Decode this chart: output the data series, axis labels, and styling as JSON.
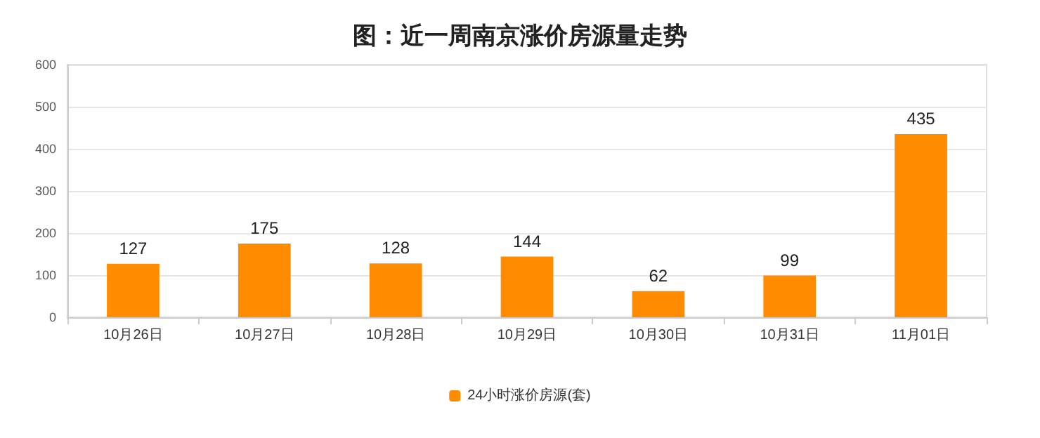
{
  "chart_data": {
    "type": "bar",
    "title": "图：近一周南京涨价房源量走势",
    "categories": [
      "10月26日",
      "10月27日",
      "10月28日",
      "10月29日",
      "10月30日",
      "10月31日",
      "11月01日"
    ],
    "series": [
      {
        "name": "24小时涨价房源(套)",
        "color": "#ff8c00",
        "values": [
          127,
          175,
          128,
          144,
          62,
          99,
          435
        ]
      }
    ],
    "ylim": [
      0,
      600
    ],
    "yticks": [
      0,
      100,
      200,
      300,
      400,
      500,
      600
    ],
    "grid": "y",
    "legend": "bottom",
    "data_labels": true
  }
}
